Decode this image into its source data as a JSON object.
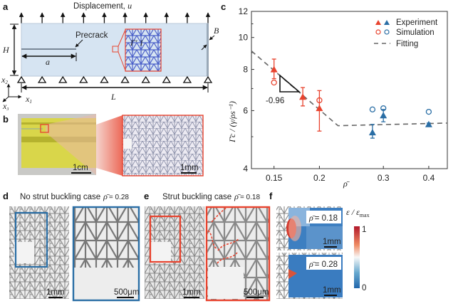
{
  "panels": {
    "a": {
      "label": "a",
      "title": "Displacement, ",
      "title_var": "u",
      "precrack": "Precrack",
      "H": "H",
      "a": "a",
      "L": "L",
      "B": "B",
      "x1": "x",
      "x2": "x",
      "x3": "x",
      "x1_sub": "1",
      "x2_sub": "2",
      "x3_sub": "3",
      "unit_cell": "Γ′ 1"
    },
    "b": {
      "label": "b",
      "scale1": "1cm",
      "scale2": "1mm"
    },
    "c": {
      "label": "c"
    },
    "d": {
      "label": "d",
      "title": "No strut buckling case",
      "rho_eq": "= 0.28",
      "rho_sym": "ρ̄",
      "scale1": "1mm",
      "scale2": "500μm"
    },
    "e": {
      "label": "e",
      "title": "Strut buckling case",
      "rho_eq": "= 0.18",
      "rho_sym": "ρ̄",
      "scale1": "1mm",
      "scale2": "500μm"
    },
    "f": {
      "label": "f",
      "top_rho": "= 0.18",
      "bottom_rho": "= 0.28",
      "rho_sym": "ρ̄",
      "scale_top": "1mm",
      "scale_bottom": "1mm",
      "colorbar_label": "ε / ε",
      "colorbar_sub": "max",
      "colorbar_max": "1",
      "colorbar_min": "0"
    }
  },
  "colors": {
    "red": "#e8432e",
    "blue": "#2a6ea5",
    "lattice": "#4a5fc8",
    "fit": "#666666"
  },
  "chart_data": {
    "type": "scatter",
    "xlabel": "ρ̄",
    "ylabel": "Γ̄c / (γ/ρs⁻¹)",
    "x_scale": "log",
    "y_scale": "log",
    "xlim": [
      0.13,
      0.45
    ],
    "ylim": [
      4,
      12
    ],
    "xticks": [
      "0.15",
      "0.2",
      "0.3",
      "0.4"
    ],
    "yticks": [
      "4",
      "6",
      "8",
      "10",
      "12"
    ],
    "grid": false,
    "legend_placement": "top-right",
    "legend": [
      "Experiment",
      "Simulation",
      "Fitting"
    ],
    "slope_annotation": "-0.96",
    "experiment": [
      {
        "x": 0.15,
        "y": 8.0,
        "lo": 7.5,
        "hi": 8.6,
        "color": "red"
      },
      {
        "x": 0.18,
        "y": 6.6,
        "lo": 6.2,
        "hi": 7.05,
        "color": "red"
      },
      {
        "x": 0.2,
        "y": 6.1,
        "lo": 5.2,
        "hi": 6.9,
        "color": "red"
      },
      {
        "x": 0.28,
        "y": 5.15,
        "lo": 4.95,
        "hi": 5.45,
        "color": "blue"
      },
      {
        "x": 0.3,
        "y": 5.8,
        "lo": 5.55,
        "hi": 6.05,
        "color": "blue"
      },
      {
        "x": 0.4,
        "y": 5.45,
        "lo": 5.4,
        "hi": 5.5,
        "color": "blue"
      }
    ],
    "simulation": [
      {
        "x": 0.15,
        "y": 7.3,
        "color": "red"
      },
      {
        "x": 0.2,
        "y": 6.45,
        "color": "red"
      },
      {
        "x": 0.28,
        "y": 6.05,
        "color": "blue"
      },
      {
        "x": 0.3,
        "y": 6.1,
        "color": "blue"
      },
      {
        "x": 0.4,
        "y": 5.95,
        "color": "blue"
      }
    ],
    "fitting": [
      {
        "x": 0.13,
        "y": 9.1
      },
      {
        "x": 0.225,
        "y": 5.4
      },
      {
        "x": 0.45,
        "y": 5.5
      }
    ]
  }
}
